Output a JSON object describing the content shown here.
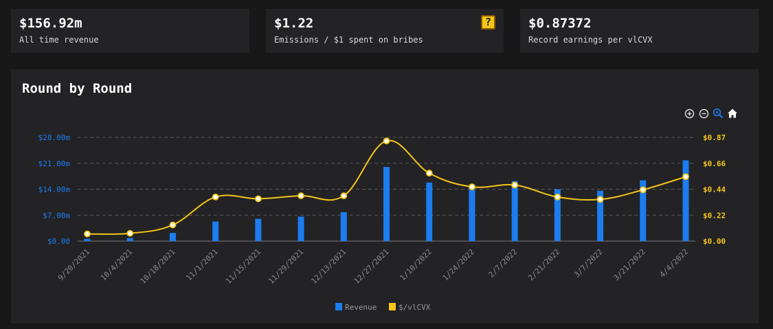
{
  "stats": [
    {
      "value": "$156.92m",
      "label": "All time revenue"
    },
    {
      "value": "$1.22",
      "label": "Emissions / $1 spent on bribes",
      "icon": "question-block-icon"
    },
    {
      "value": "$0.87372",
      "label": "Record earnings per vlCVX"
    }
  ],
  "chart": {
    "title": "Round by Round",
    "toolbar": [
      "zoom-in-icon",
      "zoom-out-icon",
      "selection-zoom-icon",
      "home-icon"
    ]
  },
  "chart_data": {
    "type": "bar",
    "title": "Round by Round",
    "categories": [
      "9/20/2021",
      "10/4/2021",
      "10/18/2021",
      "11/1/2021",
      "11/15/2021",
      "11/29/2021",
      "12/13/2021",
      "12/27/2021",
      "1/10/2022",
      "1/24/2022",
      "2/7/2022",
      "2/21/2022",
      "3/7/2022",
      "3/21/2022",
      "4/4/2022"
    ],
    "series": [
      {
        "name": "Revenue",
        "type": "bar",
        "axis": "left",
        "color": "#1c7cf0",
        "values": [
          0.6,
          0.8,
          2.2,
          5.3,
          6.0,
          6.6,
          7.8,
          20.0,
          15.8,
          15.3,
          16.2,
          14.0,
          13.6,
          16.4,
          21.8
        ]
      },
      {
        "name": "$/vlCVX",
        "type": "line",
        "axis": "right",
        "color": "#f5c518",
        "values": [
          0.06,
          0.065,
          0.135,
          0.37,
          0.355,
          0.38,
          0.38,
          0.84,
          0.57,
          0.455,
          0.47,
          0.37,
          0.35,
          0.43,
          0.54
        ]
      }
    ],
    "y_left": {
      "min": 0,
      "max": 28,
      "ticks": [
        "$0.00",
        "$7.00m",
        "$14.00m",
        "$21.00m",
        "$28.00m"
      ],
      "color": "#1c7cf0"
    },
    "y_right": {
      "min": 0,
      "max": 0.87,
      "ticks": [
        "$0.00",
        "$0.22",
        "$0.44",
        "$0.66",
        "$0.87"
      ],
      "color": "#f5c518"
    },
    "grid": true,
    "legend": "bottom-center"
  }
}
